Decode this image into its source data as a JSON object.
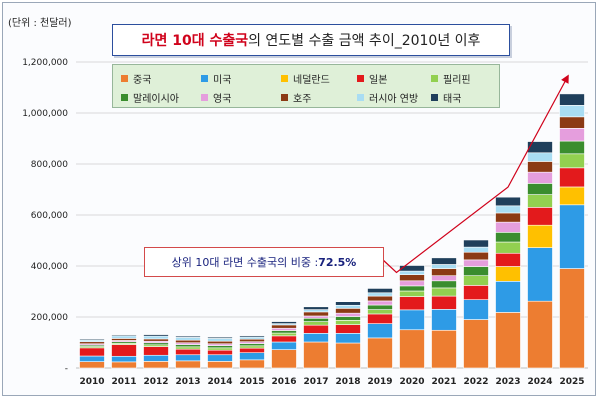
{
  "unit_label": "(단위 : 천달러)",
  "title": {
    "highlight": "라면 10대 수출국",
    "rest": "의 연도별 수출 금액 추이_2010년 이후"
  },
  "callout": {
    "text": "상위 10대 라면 수출국의 비중 : ",
    "value": "72.5%"
  },
  "chart_data": {
    "type": "bar",
    "stacked": true,
    "categories": [
      "2010",
      "2011",
      "2012",
      "2013",
      "2014",
      "2015",
      "2016",
      "2017",
      "2018",
      "2019",
      "2020",
      "2021",
      "2022",
      "2023",
      "2024",
      "2025"
    ],
    "ylim": [
      0,
      1200000
    ],
    "yticks": [
      {
        "value": 0,
        "label": "-"
      },
      {
        "value": 200000,
        "label": "200,000"
      },
      {
        "value": 400000,
        "label": "400,000"
      },
      {
        "value": 600000,
        "label": "600,000"
      },
      {
        "value": 800000,
        "label": "800,000"
      },
      {
        "value": 1000000,
        "label": "1,000,000"
      },
      {
        "value": 1200000,
        "label": "1,200,000"
      }
    ],
    "grid": true,
    "legend_position": "top",
    "series": [
      {
        "name": "중국",
        "color": "#ED7D31",
        "values": [
          25000,
          24000,
          26000,
          28000,
          26000,
          32000,
          72000,
          102000,
          98000,
          118000,
          150000,
          148000,
          190000,
          218000,
          262000,
          390000
        ]
      },
      {
        "name": "미국",
        "color": "#2E9BE6",
        "values": [
          22000,
          22000,
          24000,
          24000,
          26000,
          28000,
          30000,
          34000,
          38000,
          56000,
          78000,
          82000,
          78000,
          122000,
          210000,
          250000
        ]
      },
      {
        "name": "네덜란드",
        "color": "#FFC000",
        "values": [
          0,
          0,
          0,
          0,
          0,
          0,
          0,
          0,
          0,
          0,
          0,
          0,
          0,
          58000,
          88000,
          70000
        ]
      },
      {
        "name": "일본",
        "color": "#E31A1C",
        "values": [
          32000,
          46000,
          34000,
          22000,
          18000,
          18000,
          24000,
          32000,
          34000,
          38000,
          52000,
          52000,
          56000,
          52000,
          70000,
          75000
        ]
      },
      {
        "name": "필리핀",
        "color": "#92D050",
        "values": [
          5000,
          5000,
          7000,
          9000,
          9000,
          9000,
          11000,
          14000,
          17000,
          17000,
          22000,
          32000,
          38000,
          44000,
          50000,
          55000
        ]
      },
      {
        "name": "말레이시아",
        "color": "#3A8D2E",
        "values": [
          6000,
          6000,
          8000,
          9000,
          9000,
          9000,
          10000,
          13000,
          15000,
          18000,
          20000,
          28000,
          36000,
          38000,
          44000,
          50000
        ]
      },
      {
        "name": "영국",
        "color": "#E59EDD",
        "values": [
          5000,
          5000,
          6000,
          7000,
          7000,
          7000,
          9000,
          9000,
          13000,
          16000,
          20000,
          20000,
          26000,
          40000,
          44000,
          50000
        ]
      },
      {
        "name": "호주",
        "color": "#8B3A14",
        "values": [
          8000,
          8000,
          9000,
          10000,
          10000,
          10000,
          13000,
          16000,
          19000,
          19000,
          24000,
          28000,
          30000,
          36000,
          42000,
          45000
        ]
      },
      {
        "name": "러시아 연방",
        "color": "#A9DDF3",
        "values": [
          6000,
          10000,
          11000,
          11000,
          11000,
          8000,
          5000,
          9000,
          12000,
          13000,
          14000,
          16000,
          20000,
          28000,
          34000,
          45000
        ]
      },
      {
        "name": "태국",
        "color": "#1F3F5B",
        "values": [
          4000,
          4000,
          6000,
          5000,
          5000,
          5000,
          8000,
          11000,
          14000,
          17000,
          22000,
          26000,
          28000,
          34000,
          44000,
          45000
        ]
      }
    ]
  }
}
